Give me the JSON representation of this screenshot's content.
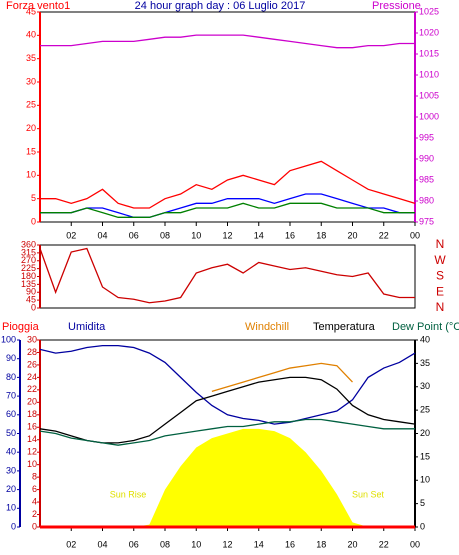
{
  "chart_data": [
    {
      "type": "line",
      "title": "24 hour graph day : 06 Luglio 2017",
      "ylabel": "Forza vento1",
      "x": [
        0,
        1,
        2,
        3,
        4,
        5,
        6,
        7,
        8,
        9,
        10,
        11,
        12,
        13,
        14,
        15,
        16,
        17,
        18,
        19,
        20,
        21,
        22,
        23,
        24
      ],
      "xlim": [
        0,
        24
      ],
      "xticks": [
        {
          "value": 2,
          "label": "02"
        },
        {
          "value": 4,
          "label": "04"
        },
        {
          "value": 6,
          "label": "06"
        },
        {
          "value": 8,
          "label": "08"
        },
        10,
        12,
        14,
        16,
        18,
        20,
        22,
        {
          "value": 24,
          "label": "00"
        }
      ],
      "ylim": [
        0,
        45
      ],
      "yticks": [
        0,
        5,
        10,
        15,
        20,
        25,
        30,
        35,
        40,
        45
      ],
      "y2lim": [
        975,
        1025
      ],
      "y2ticks": [
        975,
        980,
        985,
        990,
        995,
        1000,
        1005,
        1010,
        1015,
        1020,
        1025
      ],
      "series": [
        {
          "color": "#ff0000",
          "values": [
            5,
            5,
            4,
            5,
            7,
            4,
            3,
            3,
            5,
            6,
            8,
            7,
            9,
            10,
            9,
            8,
            11,
            12,
            13,
            11,
            9,
            7,
            6,
            5,
            4
          ]
        },
        {
          "color": "#0000ff",
          "values": [
            2,
            2,
            2,
            3,
            3,
            2,
            1,
            1,
            2,
            3,
            4,
            4,
            5,
            5,
            5,
            4,
            5,
            6,
            6,
            5,
            4,
            3,
            3,
            2,
            2
          ]
        },
        {
          "color": "#008000",
          "values": [
            2,
            2,
            2,
            3,
            2,
            1,
            1,
            1,
            2,
            2,
            3,
            3,
            3,
            4,
            3,
            3,
            4,
            4,
            4,
            3,
            3,
            3,
            2,
            2,
            2
          ]
        },
        {
          "name": "Pressione",
          "color": "#cc00cc",
          "axis": "y2",
          "values": [
            1017,
            1017,
            1017,
            1017.5,
            1018,
            1018,
            1018,
            1018.5,
            1019,
            1019,
            1019.5,
            1019.5,
            1019.5,
            1019.5,
            1019,
            1018.5,
            1018,
            1017.5,
            1017,
            1016.5,
            1016.5,
            1017,
            1017,
            1017.5,
            1017.5
          ]
        }
      ]
    },
    {
      "type": "line",
      "x": [
        0,
        1,
        2,
        3,
        4,
        5,
        6,
        7,
        8,
        9,
        10,
        11,
        12,
        13,
        14,
        15,
        16,
        17,
        18,
        19,
        20,
        21,
        22,
        23,
        24
      ],
      "xlim": [
        0,
        24
      ],
      "ylim": [
        0,
        360
      ],
      "yticks": [
        0,
        45,
        90,
        135,
        180,
        225,
        270,
        315,
        360
      ],
      "y2lim": [
        0,
        360
      ],
      "y2ticks": [
        {
          "value": 360,
          "label": "N"
        },
        {
          "value": 270,
          "label": "W"
        },
        {
          "value": 180,
          "label": "S"
        },
        {
          "value": 90,
          "label": "E"
        },
        {
          "value": 0,
          "label": "N"
        }
      ],
      "series": [
        {
          "color": "#cc0000",
          "values": [
            340,
            90,
            320,
            340,
            120,
            60,
            50,
            30,
            40,
            60,
            200,
            230,
            250,
            200,
            260,
            240,
            220,
            230,
            210,
            190,
            180,
            200,
            80,
            60,
            60
          ]
        }
      ]
    },
    {
      "type": "line",
      "x": [
        0,
        1,
        2,
        3,
        4,
        5,
        6,
        7,
        8,
        9,
        10,
        11,
        12,
        13,
        14,
        15,
        16,
        17,
        18,
        19,
        20,
        21,
        22,
        23,
        24
      ],
      "xlim": [
        0,
        24
      ],
      "xticks": [
        {
          "value": 2,
          "label": "02"
        },
        {
          "value": 4,
          "label": "04"
        },
        {
          "value": 6,
          "label": "06"
        },
        {
          "value": 8,
          "label": "08"
        },
        10,
        12,
        14,
        16,
        18,
        20,
        22,
        {
          "value": 24,
          "label": "00"
        }
      ],
      "ylim": [
        0,
        100
      ],
      "yticks": [
        0,
        10,
        20,
        30,
        40,
        50,
        60,
        70,
        80,
        90,
        100
      ],
      "y3lim": [
        0,
        30
      ],
      "y3ticks": [
        0,
        2,
        4,
        6,
        8,
        10,
        12,
        14,
        16,
        18,
        20,
        22,
        24,
        26,
        28,
        30
      ],
      "y2lim": [
        0,
        40
      ],
      "y2ticks": [
        0,
        5,
        10,
        15,
        20,
        25,
        30,
        35,
        40
      ],
      "annotations": [
        "Sun Rise",
        "Sun Set"
      ],
      "series": [
        {
          "color": "#ffff00",
          "axis": "y2",
          "style": "area",
          "values": [
            0,
            0,
            0,
            0,
            0,
            0,
            0,
            0.5,
            8,
            13,
            17,
            19,
            20,
            21,
            21,
            20.5,
            19,
            16,
            12,
            7,
            1,
            0,
            0,
            0,
            0
          ]
        },
        {
          "name": "Pioggia",
          "color": "#ff0000",
          "axis": "y3",
          "values": [
            0,
            0,
            0,
            0,
            0,
            0,
            0,
            0,
            0,
            0,
            0,
            0,
            0,
            0,
            0,
            0,
            0,
            0,
            0,
            0,
            0,
            0,
            0,
            0,
            0
          ]
        },
        {
          "name": "Umidita",
          "color": "#0000a0",
          "values": [
            95,
            93,
            94,
            96,
            97,
            97,
            96,
            93,
            88,
            80,
            72,
            65,
            60,
            58,
            57,
            55,
            56,
            58,
            60,
            62,
            68,
            80,
            85,
            88,
            93
          ]
        },
        {
          "name": "Windchill",
          "color": "#e08000",
          "axis": "y2",
          "values": [
            null,
            null,
            null,
            null,
            null,
            null,
            null,
            null,
            null,
            null,
            null,
            29,
            30,
            31,
            32,
            33,
            34,
            34.5,
            35,
            34.5,
            31,
            null,
            null,
            null,
            null
          ]
        },
        {
          "name": "Temperatura",
          "color": "#000000",
          "axis": "y2",
          "values": [
            21,
            20.5,
            19.5,
            18.5,
            18,
            18,
            18.5,
            19.5,
            22,
            24.5,
            27,
            28,
            29,
            30,
            31,
            31.5,
            32,
            32,
            31.5,
            29.5,
            26,
            24,
            23,
            22.5,
            22
          ]
        },
        {
          "name": "Dew Point (°C",
          "color": "#006040",
          "axis": "y2",
          "values": [
            20.5,
            20,
            19,
            18.5,
            18,
            17.5,
            18,
            18.5,
            19.5,
            20,
            20.5,
            21,
            21.5,
            21.5,
            22,
            22.5,
            22.5,
            23,
            23,
            22.5,
            22,
            21.5,
            21,
            21,
            21
          ]
        }
      ]
    }
  ]
}
